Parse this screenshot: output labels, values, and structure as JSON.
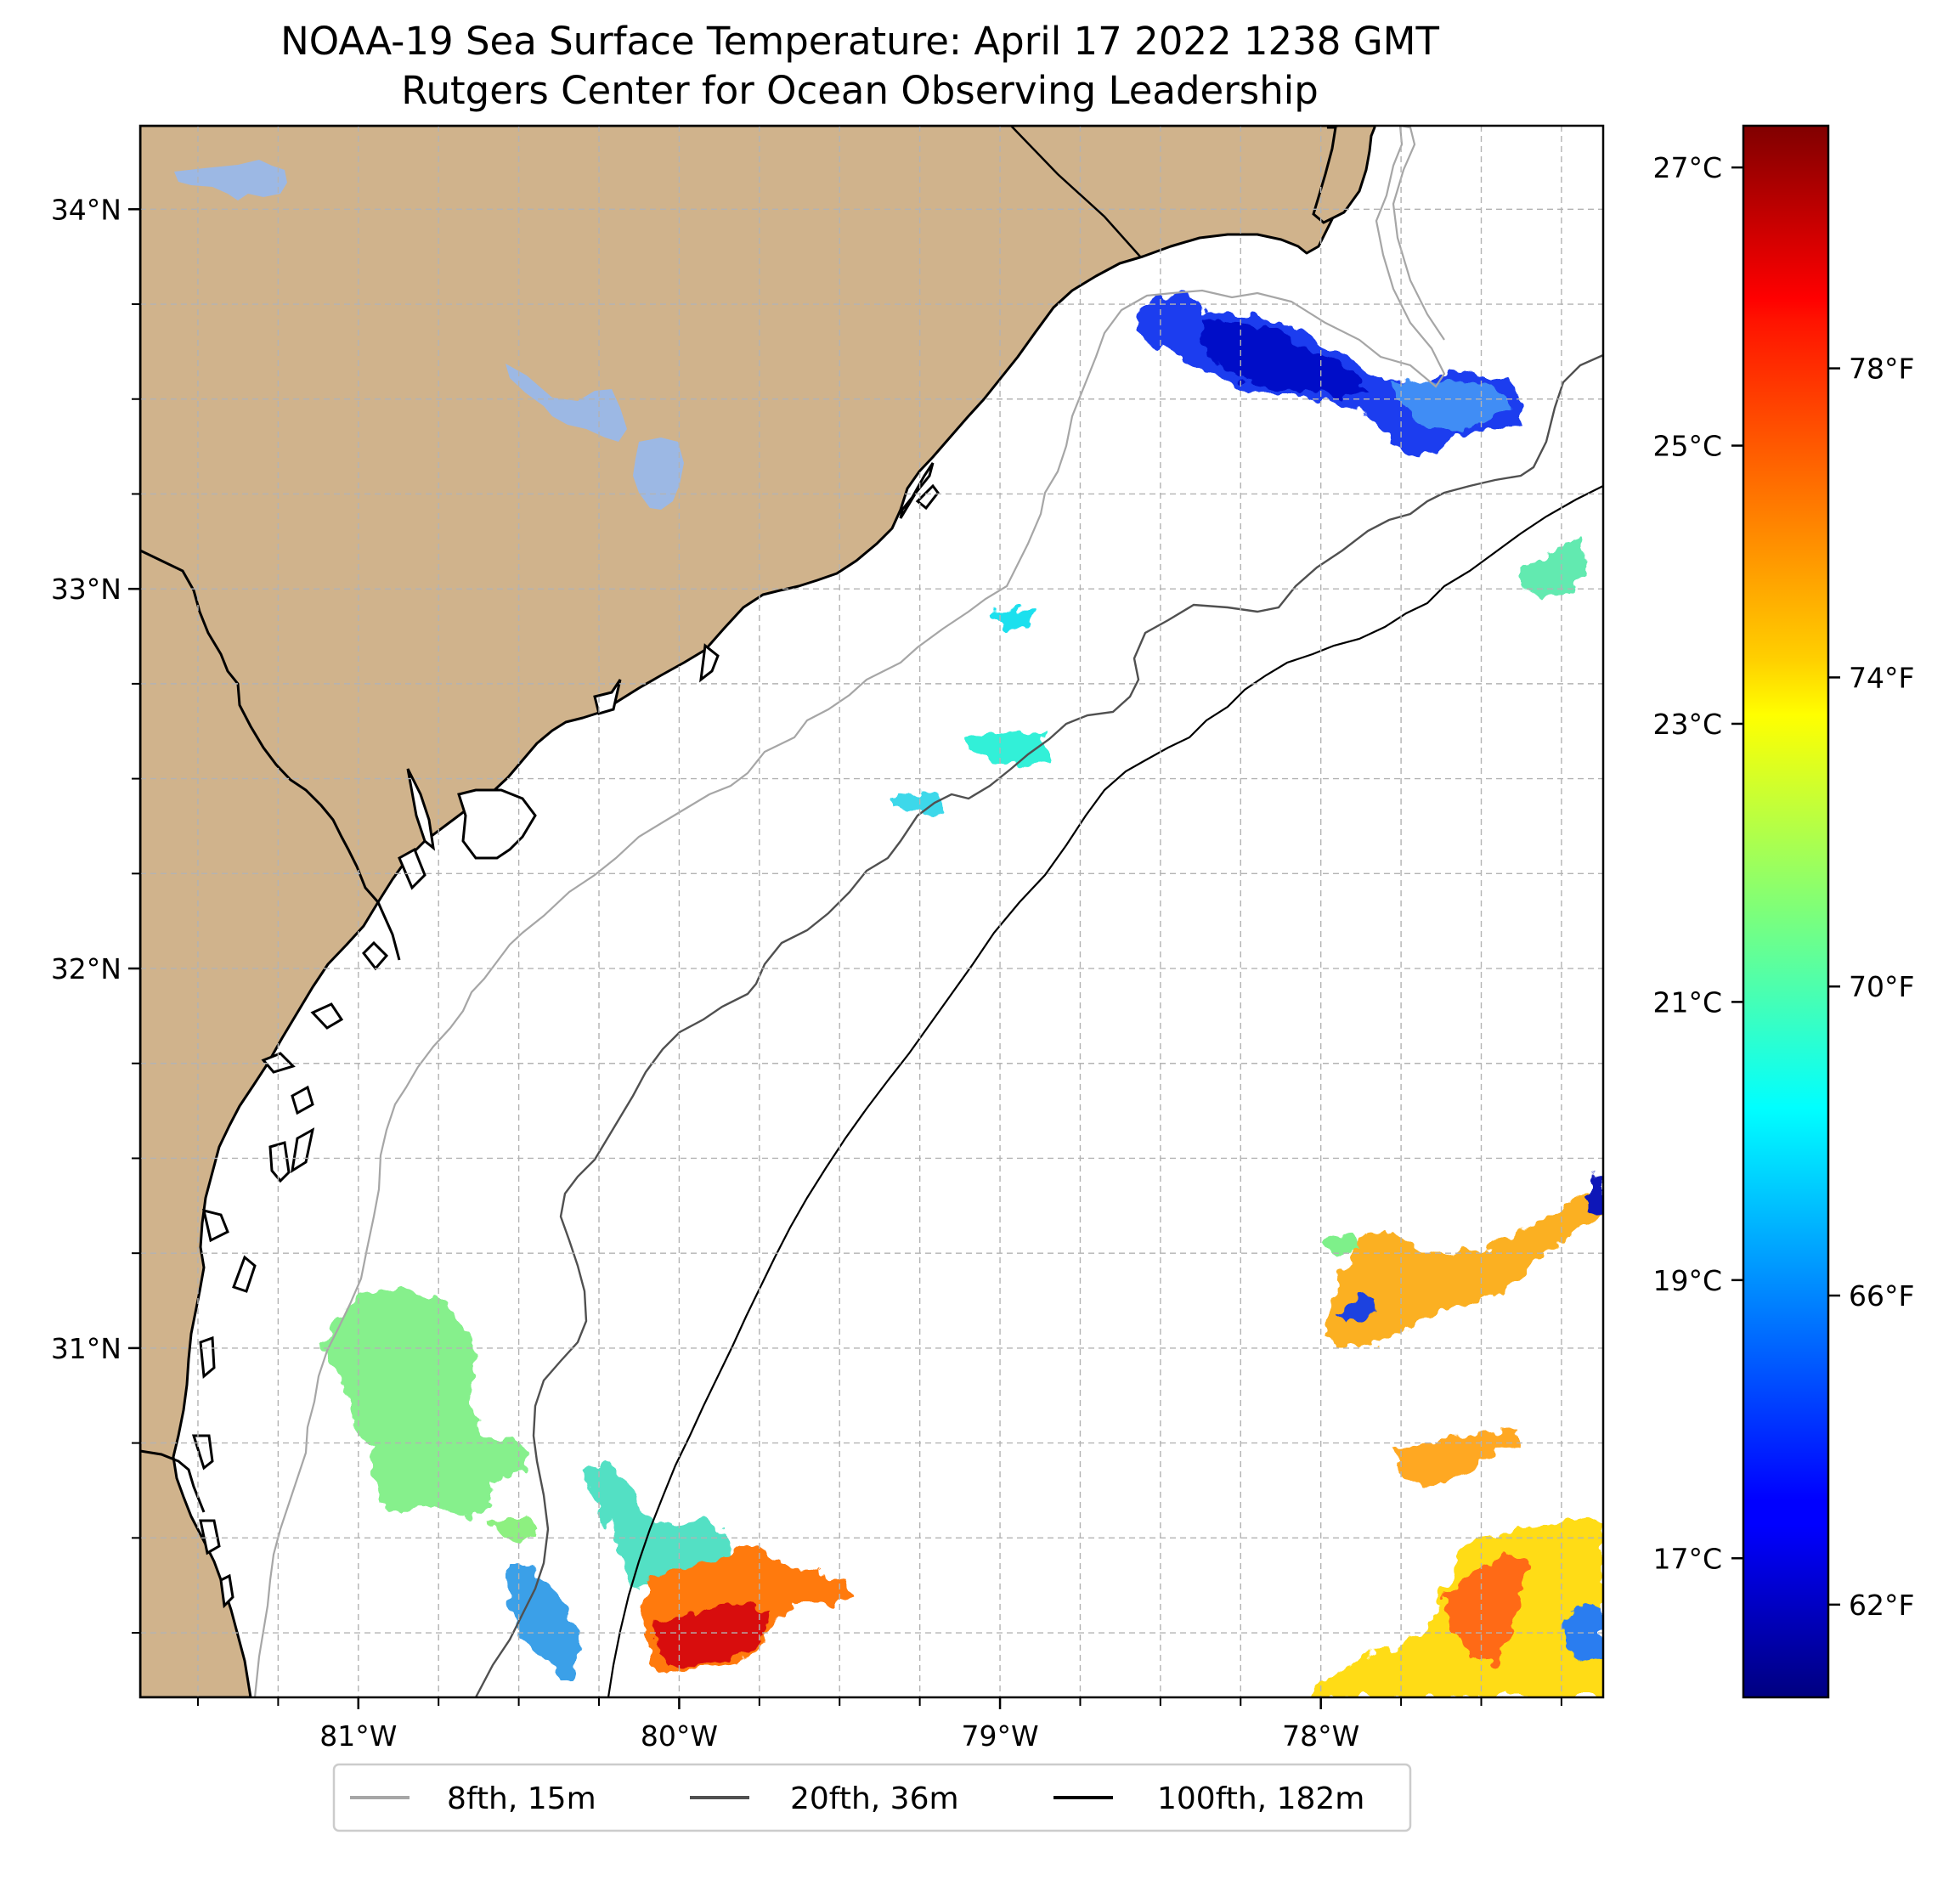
{
  "title": {
    "line1": "NOAA-19 Sea Surface Temperature: April 17 2022 1238 GMT",
    "line2": "Rutgers Center for Ocean Observing Leadership"
  },
  "map": {
    "lon_range": [
      -81.68,
      -77.12
    ],
    "lat_range": [
      30.08,
      34.22
    ],
    "lat_ticks": [
      {
        "value": 34,
        "label": "34°N"
      },
      {
        "value": 33,
        "label": "33°N"
      },
      {
        "value": 32,
        "label": "32°N"
      },
      {
        "value": 31,
        "label": "31°N"
      }
    ],
    "lon_ticks": [
      {
        "value": -81,
        "label": "81°W"
      },
      {
        "value": -80,
        "label": "80°W"
      },
      {
        "value": -79,
        "label": "79°W"
      },
      {
        "value": -78,
        "label": "78°W"
      }
    ],
    "gridlines": true,
    "land_color": "#d0b38c",
    "lake_color": "#9cb8e4",
    "ocean_color": "#ffffff"
  },
  "colorbar": {
    "colormap": "jet",
    "range_c": [
      16.0,
      27.3
    ],
    "celsius_ticks": [
      {
        "value": 27,
        "label": "27°C"
      },
      {
        "value": 25,
        "label": "25°C"
      },
      {
        "value": 23,
        "label": "23°C"
      },
      {
        "value": 21,
        "label": "21°C"
      },
      {
        "value": 19,
        "label": "19°C"
      },
      {
        "value": 17,
        "label": "17°C"
      }
    ],
    "fahrenheit_ticks": [
      {
        "value": 78,
        "label": "78°F"
      },
      {
        "value": 74,
        "label": "74°F"
      },
      {
        "value": 70,
        "label": "70°F"
      },
      {
        "value": 66,
        "label": "66°F"
      },
      {
        "value": 62,
        "label": "62°F"
      }
    ]
  },
  "legend": {
    "placement": "bottom-center",
    "items": [
      {
        "label": "8fth, 15m",
        "color": "#a6a6a6"
      },
      {
        "label": "20fth, 36m",
        "color": "#505050"
      },
      {
        "label": "100fth, 182m",
        "color": "#000000"
      }
    ]
  }
}
